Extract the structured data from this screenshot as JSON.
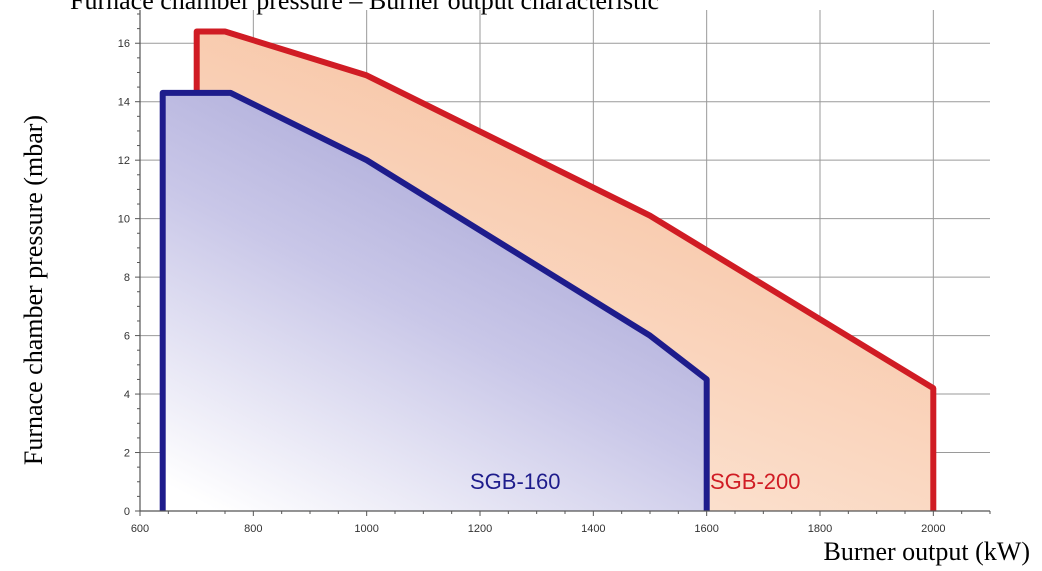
{
  "header": {
    "clipped_text": "Furnace chamber pressure – Burner output characteristic"
  },
  "chart_data": {
    "type": "area",
    "xlabel": "Burner output (kW)",
    "ylabel": "Furnace chamber pressure (mbar)",
    "xlim": [
      600,
      2100
    ],
    "ylim": [
      0,
      17
    ],
    "x_ticks": [
      600,
      800,
      1000,
      1200,
      1400,
      1600,
      1800,
      2000
    ],
    "y_ticks": [
      0,
      2,
      4,
      6,
      8,
      10,
      12,
      14,
      16
    ],
    "grid": true,
    "series": [
      {
        "name": "SGB-200",
        "color": "#d01c24",
        "fill": "#f9c8a8",
        "points": [
          [
            700,
            0
          ],
          [
            700,
            16.4
          ],
          [
            750,
            16.4
          ],
          [
            1000,
            14.9
          ],
          [
            1500,
            10.1
          ],
          [
            2000,
            4.2
          ],
          [
            2000,
            0
          ]
        ]
      },
      {
        "name": "SGB-160",
        "color": "#1e1c8c",
        "fill": "#b4b2de",
        "points": [
          [
            640,
            0
          ],
          [
            640,
            14.3
          ],
          [
            760,
            14.3
          ],
          [
            1000,
            12
          ],
          [
            1500,
            6
          ],
          [
            1600,
            4.5
          ],
          [
            1600,
            0
          ]
        ]
      }
    ]
  }
}
